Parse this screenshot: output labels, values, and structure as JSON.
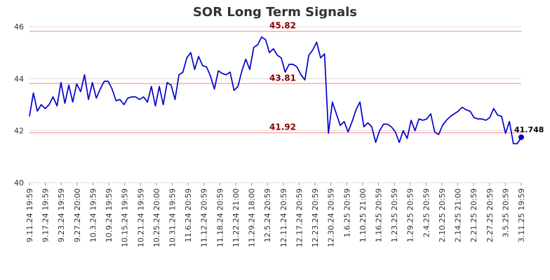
{
  "chart_data": {
    "type": "line",
    "title": "SOR Long Term Signals",
    "xlabel": "",
    "ylabel": "",
    "ylim": [
      40,
      46
    ],
    "y_ticks": [
      40,
      42,
      44,
      46
    ],
    "x_ticks": [
      "9.11.24 19:59",
      "9.17.24 19:59",
      "9.23.24 19:59",
      "9.27.24 20:00",
      "10.3.24 19:59",
      "10.9.24 19:59",
      "10.15.24 19:59",
      "10.21.24 19:59",
      "10.25.24 20:00",
      "10.31.24 19:59",
      "11.6.24 20:59",
      "11.12.24 20:59",
      "11.18.24 20:59",
      "11.22.24 21:00",
      "11.29.24 18:00",
      "12.5.24 20:59",
      "12.11.24 20:59",
      "12.17.24 20:59",
      "12.23.24 20:59",
      "12.30.24 20:59",
      "1.6.25 20:59",
      "1.10.25 21:00",
      "1.16.25 20:59",
      "1.23.25 20:59",
      "1.29.25 20:59",
      "2.4.25 20:59",
      "2.10.25 20:59",
      "2.14.25 21:00",
      "2.21.25 20:59",
      "2.27.25 20:59",
      "3.5.25 20:59",
      "3.11.25 19:59"
    ],
    "grid": "horizontal",
    "series": [
      {
        "color": "#0000cc",
        "values": [
          42.55,
          43.45,
          42.75,
          43.0,
          42.85,
          43.0,
          43.3,
          42.95,
          43.85,
          43.05,
          43.75,
          43.1,
          43.8,
          43.5,
          44.15,
          43.2,
          43.85,
          43.25,
          43.6,
          43.9,
          43.9,
          43.6,
          43.15,
          43.2,
          43.0,
          43.25,
          43.3,
          43.3,
          43.2,
          43.3,
          43.1,
          43.7,
          42.95,
          43.7,
          43.0,
          43.85,
          43.75,
          43.2,
          44.15,
          44.25,
          44.8,
          45.0,
          44.35,
          44.85,
          44.5,
          44.45,
          44.1,
          43.6,
          44.3,
          44.2,
          44.15,
          44.25,
          43.55,
          43.7,
          44.3,
          44.75,
          44.35,
          45.2,
          45.3,
          45.6,
          45.5,
          45.0,
          45.15,
          44.9,
          44.8,
          44.25,
          44.55,
          44.55,
          44.45,
          44.15,
          43.95,
          44.9,
          45.1,
          45.4,
          44.8,
          44.95,
          41.9,
          43.1,
          42.65,
          42.2,
          42.35,
          41.95,
          42.35,
          42.8,
          43.1,
          42.15,
          42.3,
          42.15,
          41.55,
          42.0,
          42.25,
          42.25,
          42.15,
          41.95,
          41.55,
          42.0,
          41.7,
          42.4,
          42.0,
          42.45,
          42.4,
          42.45,
          42.65,
          41.95,
          41.85,
          42.2,
          42.4,
          42.55,
          42.65,
          42.75,
          42.9,
          42.8,
          42.75,
          42.5,
          42.45,
          42.45,
          42.4,
          42.5,
          42.85,
          42.6,
          42.55,
          41.9,
          42.35,
          41.5,
          41.5,
          41.748
        ]
      }
    ],
    "reference_lines": [
      {
        "value": 45.82,
        "label": "45.82"
      },
      {
        "value": 43.81,
        "label": "43.81"
      },
      {
        "value": 41.92,
        "label": "41.92"
      }
    ],
    "last_point_label": "41.748",
    "colors": {
      "line": "#0000cc",
      "reference": "#ffaaaa",
      "reference_label": "#8b0000",
      "grid": "#dddddd"
    }
  }
}
